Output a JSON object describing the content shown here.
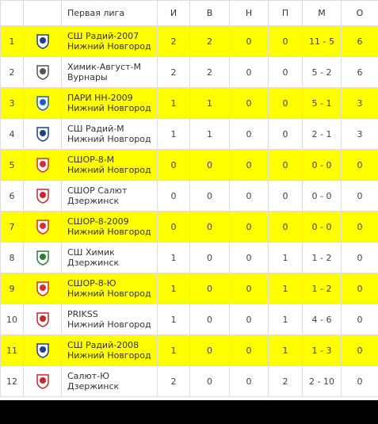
{
  "table": {
    "header": [
      "",
      "",
      "Первая лига",
      "И",
      "В",
      "Н",
      "П",
      "М",
      "О"
    ],
    "rows": [
      {
        "rank": 1,
        "team": "СШ Радий-2007",
        "city": "Нижний Новгород",
        "stats": [
          2,
          2,
          0,
          0,
          "11 - 5",
          6
        ]
      },
      {
        "rank": 2,
        "team": "Химик-Август-М",
        "city": "Вурнары",
        "stats": [
          2,
          2,
          0,
          0,
          "5 - 2",
          6
        ]
      },
      {
        "rank": 3,
        "team": "ПАРИ НН-2009",
        "city": "Нижний Новгород",
        "stats": [
          1,
          1,
          0,
          0,
          "5 - 1",
          3
        ]
      },
      {
        "rank": 4,
        "team": "СШ Радий-М",
        "city": "Нижний Новгород",
        "stats": [
          1,
          1,
          0,
          0,
          "2 - 1",
          3
        ]
      },
      {
        "rank": 5,
        "team": "СШОР-8-М",
        "city": "Нижний Новгород",
        "stats": [
          0,
          0,
          0,
          0,
          "0 - 0",
          0
        ]
      },
      {
        "rank": 6,
        "team": "СШОР Салют",
        "city": "Дзержинск",
        "stats": [
          0,
          0,
          0,
          0,
          "0 - 0",
          0
        ]
      },
      {
        "rank": 7,
        "team": "СШОР-8-2009",
        "city": "Нижний Новгород",
        "stats": [
          0,
          0,
          0,
          0,
          "0 - 0",
          0
        ]
      },
      {
        "rank": 8,
        "team": "СШ Химик",
        "city": "Дзержинск",
        "stats": [
          1,
          0,
          0,
          1,
          "1 - 2",
          0
        ]
      },
      {
        "rank": 9,
        "team": "СШОР-8-Ю",
        "city": "Нижний Новгород",
        "stats": [
          1,
          0,
          0,
          1,
          "1 - 2",
          0
        ]
      },
      {
        "rank": 10,
        "team": "PRIKSS",
        "city": "Нижний Новгород",
        "stats": [
          1,
          0,
          0,
          1,
          "4 - 6",
          0
        ]
      },
      {
        "rank": 11,
        "team": "СШ Радий-2008",
        "city": "Нижний Новгород",
        "stats": [
          1,
          0,
          0,
          1,
          "1 - 3",
          0
        ]
      },
      {
        "rank": 12,
        "team": "Салют-Ю",
        "city": "Дзержинск",
        "stats": [
          2,
          0,
          0,
          2,
          "2 - 10",
          0
        ]
      }
    ]
  }
}
